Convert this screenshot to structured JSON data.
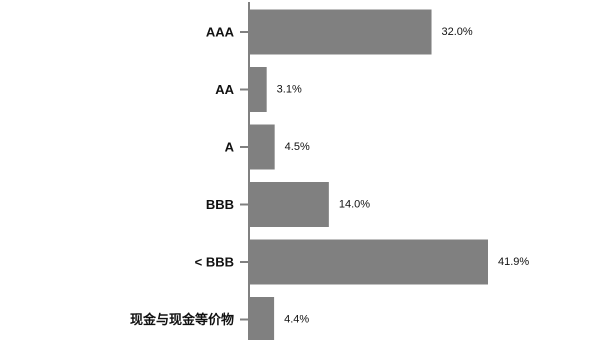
{
  "colors": {
    "bar": "#808080",
    "axis": "#808080",
    "text": "#111111",
    "background": "#ffffff"
  },
  "chart_data": {
    "type": "bar",
    "orientation": "horizontal",
    "title": "",
    "xlabel": "",
    "ylabel": "",
    "categories": [
      "AAA",
      "AA",
      "A",
      "BBB",
      "< BBB",
      "现金与现金等价物"
    ],
    "values": [
      32.0,
      3.1,
      4.5,
      14.0,
      41.9,
      4.4
    ],
    "value_labels": [
      "32.0%",
      "3.1%",
      "4.5%",
      "14.0%",
      "41.9%",
      "4.4%"
    ],
    "xlim": [
      0,
      41.9
    ],
    "grid": false,
    "legend": "none"
  }
}
